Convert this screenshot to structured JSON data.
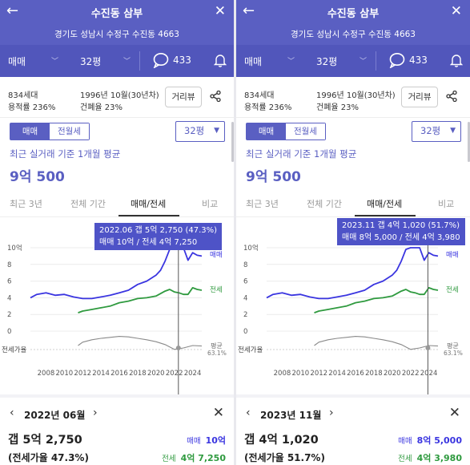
{
  "panels": [
    {
      "title": "수진동 삼부",
      "address": "경기도 성남시 수정구 수진동 4663",
      "options": {
        "trade_type": "매매",
        "size": "32평",
        "talk_count": "433"
      },
      "info": {
        "households": "834세대",
        "floor_area_ratio": "용적률 236%",
        "built": "1996년 10월(30년차)",
        "coverage_ratio": "건폐율 23%",
        "street_view_button": "거리뷰"
      },
      "segment": {
        "sale": "매매",
        "rent": "전월세"
      },
      "size_select": "32평",
      "average": {
        "label": "최근 실거래 기준 1개월 평균",
        "value": "9억 500"
      },
      "tabs": [
        "최근 3년",
        "전체 기간",
        "매매/전세",
        "비교"
      ],
      "active_tab": "매매/전세",
      "tooltip": {
        "line1": "2022.06  갭 5억 2,750 (47.3%)",
        "line2": "매매 10억 / 전세 4억 7,250"
      },
      "detail": {
        "month": "2022년 06월",
        "gap": "갭 5억 2,750",
        "rate": "(전세가율 47.3%)",
        "sale_label": "매매",
        "sale_value": "10억",
        "rent_label": "전세",
        "rent_value": "4억 7,250"
      }
    },
    {
      "title": "수진동 삼부",
      "address": "경기도 성남시 수정구 수진동 4663",
      "options": {
        "trade_type": "매매",
        "size": "32평",
        "talk_count": "433"
      },
      "info": {
        "households": "834세대",
        "floor_area_ratio": "용적률 236%",
        "built": "1996년 10월(30년차)",
        "coverage_ratio": "건폐율 23%",
        "street_view_button": "거리뷰"
      },
      "segment": {
        "sale": "매매",
        "rent": "전월세"
      },
      "size_select": "32평",
      "average": {
        "label": "최근 실거래 기준 1개월 평균",
        "value": "9억 500"
      },
      "tabs": [
        "최근 3년",
        "전체 기간",
        "매매/전세",
        "비교"
      ],
      "active_tab": "매매/전세",
      "tooltip": {
        "line1": "2023.11  갭 4억 1,020 (51.7%)",
        "line2": "매매 8억 5,000 / 전세 4억 3,980"
      },
      "detail": {
        "month": "2023년 11월",
        "gap": "갭 4억 1,020",
        "rate": "(전세가율 51.7%)",
        "sale_label": "매매",
        "sale_value": "8억 5,000",
        "rent_label": "전세",
        "rent_value": "4억 3,980"
      }
    }
  ],
  "chart_data": [
    {
      "type": "line",
      "x_ticks": [
        "2008",
        "2010",
        "2012",
        "2014",
        "2016",
        "2018",
        "2020",
        "2022",
        "2024"
      ],
      "y_ticks": [
        "10억",
        "8",
        "6",
        "4",
        "2",
        "0"
      ],
      "ylim": [
        0,
        10
      ],
      "rate_axis_label": "전세가율",
      "rate_avg_label": "평균",
      "rate_avg_value": "63.1%",
      "series": [
        {
          "name": "매매",
          "color": "#3a35e0",
          "x": [
            2006.3,
            2007,
            2008,
            2009,
            2010,
            2011,
            2012,
            2013,
            2014,
            2015,
            2016,
            2017,
            2018,
            2019,
            2020,
            2020.5,
            2021,
            2021.5,
            2022,
            2022.5,
            2023,
            2023.5,
            2024,
            2024.5,
            2025
          ],
          "y": [
            4.0,
            4.4,
            4.6,
            4.3,
            4.4,
            4.1,
            3.9,
            3.9,
            4.1,
            4.3,
            4.6,
            4.9,
            5.6,
            6.0,
            6.7,
            7.3,
            8.4,
            9.8,
            10.0,
            10.0,
            10.0,
            8.5,
            9.4,
            9.1,
            9.0
          ]
        },
        {
          "name": "전세",
          "color": "#2f9a3f",
          "x": [
            2011.5,
            2012,
            2013,
            2014,
            2015,
            2016,
            2017,
            2018,
            2019,
            2020,
            2020.5,
            2021,
            2021.5,
            2022,
            2022.5,
            2023,
            2023.5,
            2024,
            2024.5,
            2025
          ],
          "y": [
            2.2,
            2.4,
            2.6,
            2.8,
            3.0,
            3.4,
            3.6,
            3.9,
            4.0,
            4.2,
            4.5,
            4.8,
            5.0,
            4.7,
            4.6,
            4.4,
            4.4,
            5.2,
            5.0,
            4.9
          ]
        },
        {
          "name": "전세가율",
          "color": "#8a8a8a",
          "x": [
            2011.5,
            2012,
            2013,
            2014,
            2015,
            2016,
            2017,
            2018,
            2019,
            2020,
            2021,
            2022,
            2023,
            2024,
            2025
          ],
          "y": [
            55,
            62,
            67,
            70,
            72,
            74,
            73,
            70,
            67,
            63,
            57,
            47,
            50,
            55,
            54
          ]
        }
      ]
    }
  ]
}
